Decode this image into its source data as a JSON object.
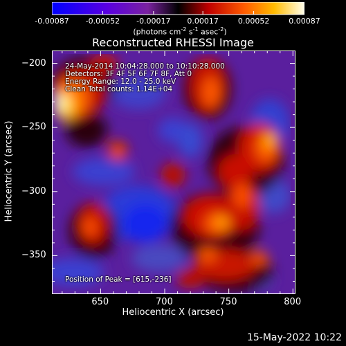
{
  "colorbar": {
    "ticks": [
      "-0.00087",
      "-0.00052",
      "-0.00017",
      "0.00017",
      "0.00052",
      "0.00087"
    ],
    "units_main": "(photons cm",
    "units_sup1": "-2",
    "units_mid1": " s",
    "units_sup2": "-1",
    "units_mid2": " asec",
    "units_sup3": "-2",
    "units_end": ")",
    "colors": [
      "#0000ff",
      "#6600cc",
      "#000000",
      "#cc0000",
      "#ff8800",
      "#ffffee"
    ]
  },
  "chart_data": {
    "type": "heatmap",
    "title": "Reconstructed RHESSI Image",
    "xlabel": "Heliocentric X (arcsec)",
    "ylabel": "Heliocentric Y (arcsec)",
    "xlim": [
      612,
      802
    ],
    "ylim": [
      -380,
      -190
    ],
    "x_ticks": [
      650,
      700,
      750,
      800
    ],
    "y_ticks": [
      -200,
      -250,
      -300,
      -350
    ],
    "color_range": [
      -0.00087,
      0.00087
    ],
    "peak": [
      615,
      -236
    ]
  },
  "annotations": {
    "line1": "24-May-2014 10:04:28.000 to 10:10:28.000",
    "line2": "Detectors: 3F 4F 5F 6F 7F 8F, Att 0",
    "line3": "Energy Range: 12.0 - 25.0 keV",
    "line4": "Clean    Total counts: 1.14E+04",
    "peak_text": "Position of Peak = [615,-236]"
  },
  "footer": "15-May-2022 10:22"
}
